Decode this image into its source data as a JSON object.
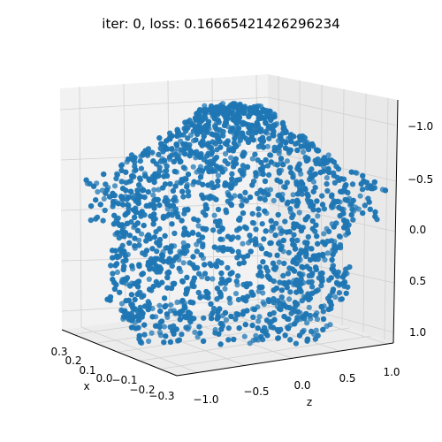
{
  "chart_data": {
    "type": "scatter",
    "projection": "3d",
    "title": "iter: 0, loss: 0.16665421426296234",
    "axes": {
      "x": {
        "label": "x",
        "ticks": [
          "0.3",
          "0.2",
          "0.1",
          "0.0",
          "−0.1",
          "−0.2",
          "−0.3"
        ],
        "range": [
          -0.3,
          0.3
        ]
      },
      "z": {
        "label": "z",
        "ticks": [
          "−1.0",
          "−0.5",
          "0.0",
          "0.5",
          "1.0"
        ],
        "range": [
          -1.0,
          1.0
        ]
      },
      "y": {
        "label": "",
        "ticks": [
          "−1.0",
          "−0.5",
          "0.0",
          "0.5",
          "1.0"
        ],
        "range": [
          -1.0,
          1.0
        ],
        "inverted": true
      }
    },
    "grid": true,
    "marker_color": "#1f77b4",
    "pane_color": "#f2f2f2",
    "grid_color": "#d0d0d0",
    "point_count": 4000,
    "shape_description_levels": [
      {
        "y": -0.95,
        "z_half_width": 0.3
      },
      {
        "y": -0.5,
        "z_half_width": 0.55
      },
      {
        "y": 0.0,
        "z_half_width": 0.85
      },
      {
        "y": 0.5,
        "z_half_width": 0.95
      },
      {
        "y": 1.0,
        "z_half_width": 0.95
      }
    ]
  }
}
